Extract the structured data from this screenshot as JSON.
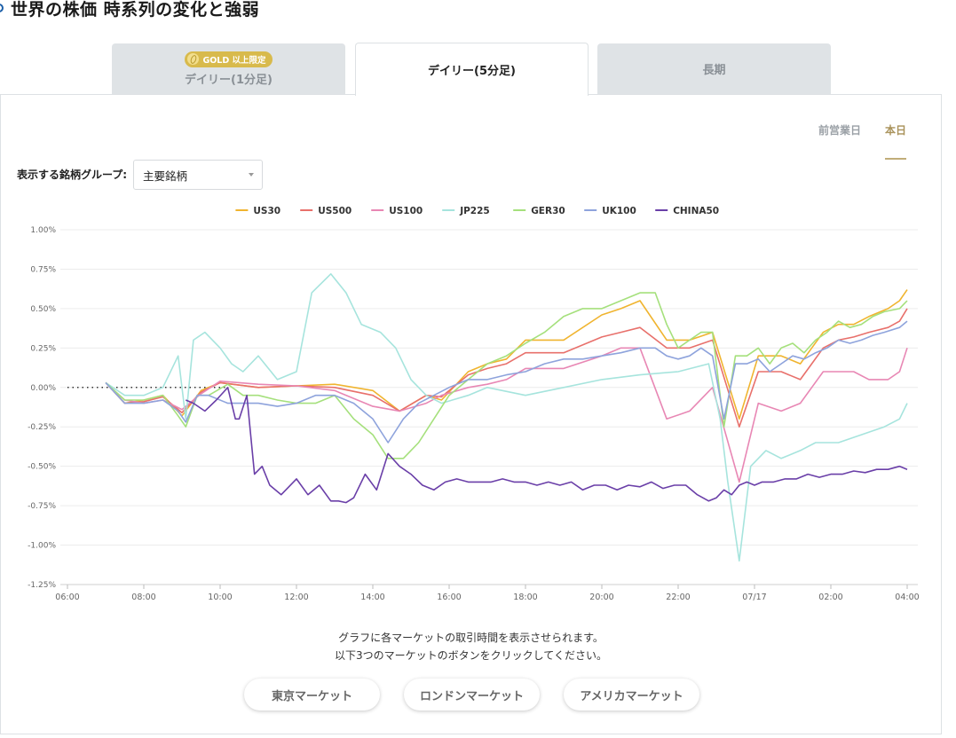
{
  "page": {
    "title": "世界の株価 時系列の変化と強弱"
  },
  "tabs": [
    {
      "label": "デイリー(1分足)",
      "badge": "GOLD 以上限定",
      "active": false
    },
    {
      "label": "デイリー(5分足)",
      "active": true
    },
    {
      "label": "長期",
      "active": false
    }
  ],
  "day_toggle": {
    "previous": "前営業日",
    "today": "本日",
    "selected": "本日"
  },
  "group_select": {
    "label": "表示する銘柄グループ:",
    "value": "主要銘柄"
  },
  "note": {
    "line1": "グラフに各マーケットの取引時間を表示させられます。",
    "line2": "以下3つのマーケットのボタンをクリックしてください。"
  },
  "market_buttons": [
    "東京マーケット",
    "ロンドンマーケット",
    "アメリカマーケット"
  ],
  "chart_data": {
    "type": "line",
    "title": "",
    "xlabel": "",
    "ylabel": "",
    "x_ticks": [
      "06:00",
      "08:00",
      "10:00",
      "12:00",
      "14:00",
      "16:00",
      "18:00",
      "20:00",
      "22:00",
      "07/17",
      "02:00",
      "04:00"
    ],
    "x_range_hours": [
      0,
      22
    ],
    "y_ticks": [
      "1.00%",
      "0.75%",
      "0.50%",
      "0.25%",
      "0.00%",
      "-0.25%",
      "-0.50%",
      "-0.75%",
      "-1.00%",
      "-1.25%"
    ],
    "ylim": [
      -1.25,
      1.0
    ],
    "grid": "horizontal",
    "legend": "top",
    "baseline": {
      "x": [
        0,
        4.2
      ],
      "y": 0.0,
      "style": "dotted"
    },
    "series": [
      {
        "name": "US30",
        "color": "#f0b42f",
        "x": [
          1.0,
          1.5,
          2.0,
          2.5,
          3.0,
          3.5,
          4.0,
          5.0,
          6.0,
          7.0,
          8.0,
          8.7,
          9.4,
          9.8,
          10.5,
          11.0,
          11.5,
          12.0,
          13.0,
          14.0,
          14.5,
          15.0,
          15.7,
          16.3,
          16.9,
          17.6,
          18.1,
          18.7,
          19.2,
          19.5,
          19.8,
          20.2,
          20.6,
          21.0,
          21.5,
          21.8,
          22.0
        ],
        "y": [
          0.03,
          -0.1,
          -0.08,
          -0.05,
          -0.18,
          -0.02,
          0.03,
          0.0,
          0.01,
          0.02,
          -0.02,
          -0.15,
          -0.05,
          -0.08,
          0.1,
          0.15,
          0.18,
          0.3,
          0.3,
          0.46,
          0.5,
          0.55,
          0.3,
          0.3,
          0.35,
          -0.2,
          0.2,
          0.2,
          0.15,
          0.25,
          0.35,
          0.4,
          0.4,
          0.45,
          0.5,
          0.55,
          0.62
        ]
      },
      {
        "name": "US500",
        "color": "#e8706b",
        "x": [
          1.0,
          1.5,
          2.0,
          2.5,
          3.0,
          3.5,
          4.0,
          5.0,
          6.0,
          7.0,
          8.0,
          8.7,
          9.4,
          9.8,
          10.5,
          11.0,
          11.5,
          12.0,
          13.0,
          14.0,
          14.5,
          15.0,
          15.7,
          16.3,
          16.9,
          17.6,
          18.1,
          18.7,
          19.2,
          19.5,
          19.8,
          20.2,
          20.6,
          21.0,
          21.5,
          21.8,
          22.0
        ],
        "y": [
          0.03,
          -0.1,
          -0.09,
          -0.06,
          -0.16,
          -0.03,
          0.03,
          0.0,
          0.01,
          0.0,
          -0.05,
          -0.15,
          -0.05,
          -0.06,
          0.08,
          0.12,
          0.15,
          0.22,
          0.22,
          0.32,
          0.35,
          0.38,
          0.25,
          0.25,
          0.3,
          -0.25,
          0.1,
          0.1,
          0.05,
          0.15,
          0.25,
          0.3,
          0.32,
          0.35,
          0.38,
          0.42,
          0.5
        ]
      },
      {
        "name": "US100",
        "color": "#e887b4",
        "x": [
          1.0,
          1.5,
          2.0,
          2.5,
          3.0,
          3.5,
          4.0,
          5.0,
          6.0,
          7.0,
          8.0,
          8.7,
          9.4,
          9.8,
          10.5,
          11.0,
          11.5,
          12.0,
          13.0,
          14.0,
          14.5,
          15.0,
          15.7,
          16.3,
          16.9,
          17.6,
          18.1,
          18.7,
          19.2,
          19.5,
          19.8,
          20.2,
          20.6,
          21.0,
          21.5,
          21.8,
          22.0
        ],
        "y": [
          0.03,
          -0.08,
          -0.1,
          -0.08,
          -0.14,
          -0.04,
          0.04,
          0.02,
          0.01,
          -0.02,
          -0.12,
          -0.15,
          -0.1,
          -0.05,
          0.0,
          0.02,
          0.05,
          0.12,
          0.12,
          0.2,
          0.25,
          0.25,
          -0.2,
          -0.15,
          0.0,
          -0.6,
          -0.1,
          -0.15,
          -0.1,
          0.0,
          0.1,
          0.1,
          0.1,
          0.05,
          0.05,
          0.1,
          0.25
        ]
      },
      {
        "name": "JP225",
        "color": "#a6e4dd",
        "x": [
          1.0,
          1.5,
          2.0,
          2.5,
          2.9,
          3.1,
          3.3,
          3.6,
          4.0,
          4.3,
          4.6,
          5.0,
          5.5,
          6.0,
          6.4,
          6.9,
          7.3,
          7.7,
          8.2,
          8.6,
          9.0,
          9.4,
          9.8,
          10.5,
          11.0,
          12.0,
          13.0,
          14.0,
          15.0,
          16.0,
          16.8,
          17.1,
          17.3,
          17.6,
          17.9,
          18.3,
          18.7,
          19.2,
          19.6,
          20.2,
          20.8,
          21.4,
          21.8,
          22.0
        ],
        "y": [
          0.03,
          -0.05,
          -0.05,
          0.0,
          0.2,
          -0.2,
          0.3,
          0.35,
          0.25,
          0.15,
          0.1,
          0.2,
          0.05,
          0.1,
          0.6,
          0.72,
          0.6,
          0.4,
          0.35,
          0.25,
          0.05,
          -0.05,
          -0.1,
          -0.05,
          0.0,
          -0.05,
          0.0,
          0.05,
          0.08,
          0.1,
          0.15,
          -0.2,
          -0.6,
          -1.1,
          -0.5,
          -0.4,
          -0.45,
          -0.4,
          -0.35,
          -0.35,
          -0.3,
          -0.25,
          -0.2,
          -0.1
        ]
      },
      {
        "name": "GER30",
        "color": "#a5e07c",
        "x": [
          1.0,
          1.5,
          2.0,
          2.5,
          2.9,
          3.1,
          3.4,
          3.7,
          4.2,
          4.6,
          5.0,
          5.5,
          6.0,
          6.5,
          7.0,
          7.5,
          8.0,
          8.4,
          8.8,
          9.2,
          9.6,
          10.0,
          10.5,
          11.0,
          11.5,
          12.0,
          12.5,
          13.0,
          13.5,
          14.0,
          14.5,
          15.0,
          15.4,
          15.7,
          16.0,
          16.3,
          16.6,
          16.9,
          17.2,
          17.5,
          17.8,
          18.1,
          18.4,
          18.7,
          19.0,
          19.3,
          19.6,
          19.9,
          20.2,
          20.5,
          20.8,
          21.1,
          21.4,
          21.8,
          22.0
        ],
        "y": [
          0.03,
          -0.08,
          -0.08,
          -0.05,
          -0.18,
          -0.25,
          -0.05,
          -0.05,
          0.02,
          -0.05,
          -0.05,
          -0.08,
          -0.1,
          -0.1,
          -0.05,
          -0.2,
          -0.3,
          -0.45,
          -0.45,
          -0.35,
          -0.2,
          -0.05,
          0.05,
          0.15,
          0.2,
          0.28,
          0.35,
          0.45,
          0.5,
          0.5,
          0.55,
          0.6,
          0.6,
          0.4,
          0.25,
          0.3,
          0.35,
          0.35,
          -0.25,
          0.2,
          0.2,
          0.25,
          0.15,
          0.25,
          0.28,
          0.22,
          0.3,
          0.35,
          0.42,
          0.38,
          0.4,
          0.45,
          0.48,
          0.5,
          0.55
        ]
      },
      {
        "name": "UK100",
        "color": "#8ea3dc",
        "x": [
          1.0,
          1.5,
          2.0,
          2.5,
          2.9,
          3.1,
          3.4,
          3.7,
          4.2,
          4.6,
          5.0,
          5.5,
          6.0,
          6.5,
          7.0,
          7.5,
          8.0,
          8.4,
          8.8,
          9.2,
          9.6,
          10.0,
          10.5,
          11.0,
          11.5,
          12.0,
          12.5,
          13.0,
          13.5,
          14.0,
          14.5,
          15.0,
          15.4,
          15.7,
          16.0,
          16.3,
          16.6,
          16.9,
          17.2,
          17.5,
          17.8,
          18.1,
          18.4,
          18.7,
          19.0,
          19.3,
          19.6,
          19.9,
          20.2,
          20.5,
          20.8,
          21.1,
          21.4,
          21.8,
          22.0
        ],
        "y": [
          0.03,
          -0.1,
          -0.1,
          -0.08,
          -0.15,
          -0.22,
          -0.05,
          -0.05,
          -0.1,
          -0.1,
          -0.1,
          -0.12,
          -0.1,
          -0.05,
          -0.05,
          -0.1,
          -0.2,
          -0.35,
          -0.2,
          -0.1,
          -0.05,
          0.0,
          0.05,
          0.05,
          0.08,
          0.1,
          0.15,
          0.18,
          0.18,
          0.2,
          0.22,
          0.25,
          0.25,
          0.2,
          0.18,
          0.2,
          0.25,
          0.2,
          -0.2,
          0.15,
          0.15,
          0.18,
          0.1,
          0.15,
          0.2,
          0.18,
          0.22,
          0.25,
          0.3,
          0.28,
          0.3,
          0.33,
          0.35,
          0.38,
          0.42
        ]
      },
      {
        "name": "CHINA50",
        "color": "#6a3fa8",
        "x": [
          3.1,
          3.3,
          3.6,
          3.9,
          4.2,
          4.4,
          4.5,
          4.7,
          4.9,
          5.1,
          5.3,
          5.6,
          6.0,
          6.3,
          6.6,
          6.9,
          7.1,
          7.3,
          7.5,
          7.8,
          8.1,
          8.4,
          8.7,
          9.0,
          9.3,
          9.6,
          9.9,
          10.2,
          10.5,
          10.8,
          11.1,
          11.4,
          11.7,
          12.0,
          12.3,
          12.6,
          12.9,
          13.2,
          13.5,
          13.8,
          14.1,
          14.4,
          14.7,
          15.0,
          15.3,
          15.6,
          15.9,
          16.2,
          16.5,
          16.8,
          17.0,
          17.2,
          17.4,
          17.6,
          17.8,
          18.0,
          18.2,
          18.5,
          18.8,
          19.1,
          19.4,
          19.7,
          20.0,
          20.3,
          20.6,
          20.9,
          21.2,
          21.5,
          21.8,
          22.0
        ],
        "y": [
          -0.08,
          -0.1,
          -0.15,
          -0.08,
          0.0,
          -0.2,
          -0.2,
          -0.05,
          -0.55,
          -0.5,
          -0.62,
          -0.68,
          -0.58,
          -0.68,
          -0.62,
          -0.72,
          -0.72,
          -0.73,
          -0.7,
          -0.55,
          -0.65,
          -0.42,
          -0.5,
          -0.55,
          -0.62,
          -0.65,
          -0.6,
          -0.58,
          -0.6,
          -0.6,
          -0.6,
          -0.58,
          -0.6,
          -0.6,
          -0.62,
          -0.6,
          -0.62,
          -0.6,
          -0.65,
          -0.62,
          -0.62,
          -0.65,
          -0.62,
          -0.63,
          -0.6,
          -0.64,
          -0.62,
          -0.62,
          -0.68,
          -0.72,
          -0.7,
          -0.65,
          -0.68,
          -0.62,
          -0.6,
          -0.62,
          -0.6,
          -0.6,
          -0.58,
          -0.58,
          -0.55,
          -0.57,
          -0.55,
          -0.55,
          -0.53,
          -0.54,
          -0.52,
          -0.52,
          -0.5,
          -0.52
        ]
      }
    ]
  }
}
